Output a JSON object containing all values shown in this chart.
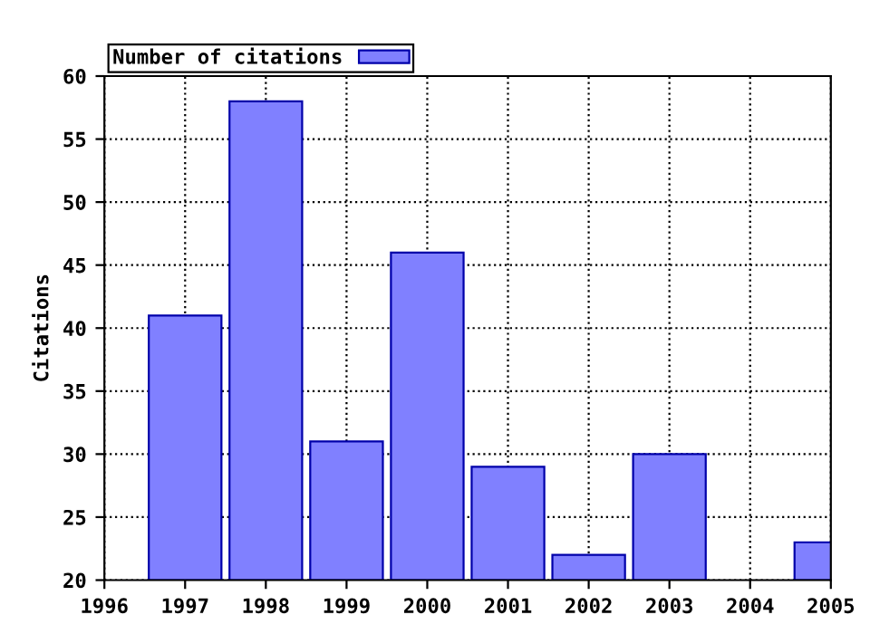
{
  "chart_data": {
    "type": "bar",
    "ylabel": "Citations",
    "x": [
      1997,
      1998,
      1999,
      2000,
      2001,
      2002,
      2003,
      2004,
      2005
    ],
    "series": [
      {
        "name": "Number of citations",
        "color": "#8080ff",
        "values": [
          41,
          58,
          31,
          46,
          29,
          22,
          30,
          null,
          23
        ]
      }
    ],
    "xlim": [
      1996,
      2005
    ],
    "xticks": [
      1996,
      1997,
      1998,
      1999,
      2000,
      2001,
      2002,
      2003,
      2004,
      2005
    ],
    "ylim": [
      20,
      60
    ],
    "yticks": [
      20,
      25,
      30,
      35,
      40,
      45,
      50,
      55,
      60
    ],
    "grid": true,
    "line_style": "dotted",
    "legend": "top left"
  }
}
